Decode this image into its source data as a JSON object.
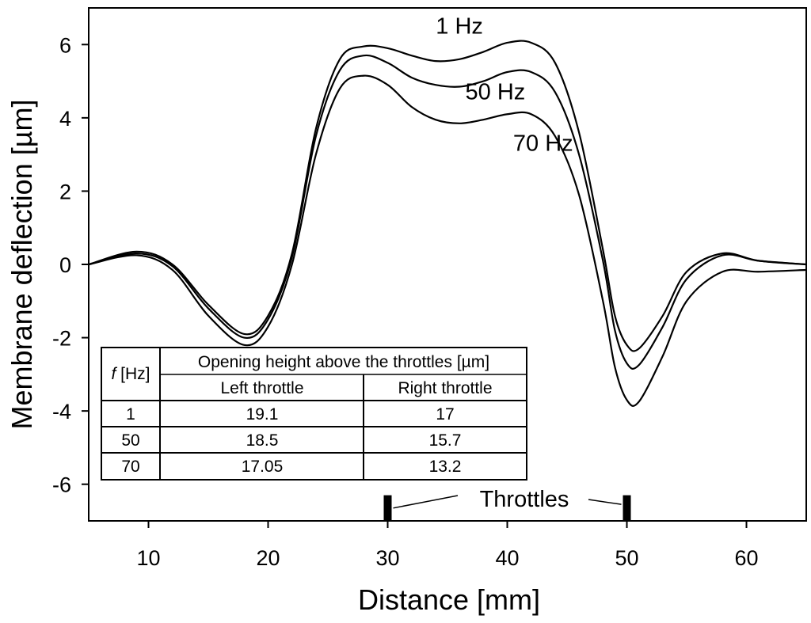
{
  "chart_data": {
    "type": "line",
    "xlabel": "Distance [mm]",
    "ylabel": "Membrane deflection [µm]",
    "xlim": [
      5,
      65
    ],
    "ylim": [
      -7,
      7
    ],
    "x_ticks": [
      10,
      20,
      30,
      40,
      50,
      60
    ],
    "y_ticks": [
      6,
      4,
      2,
      0,
      -2,
      -4,
      -6
    ],
    "series": [
      {
        "name": "1 Hz",
        "x": [
          5,
          9,
          12,
          15,
          18,
          20,
          22,
          24,
          26,
          28,
          30,
          32,
          34,
          36,
          38,
          40,
          42,
          44,
          46,
          48,
          49,
          50,
          51,
          53,
          55,
          58,
          61,
          65
        ],
        "y": [
          0,
          0.35,
          0,
          -1.1,
          -1.9,
          -1.4,
          0.3,
          3.7,
          5.6,
          5.95,
          5.9,
          5.7,
          5.55,
          5.6,
          5.8,
          6.05,
          6.05,
          5.5,
          3.6,
          0.4,
          -1.4,
          -2.2,
          -2.3,
          -1.4,
          -0.2,
          0.3,
          0.1,
          0
        ]
      },
      {
        "name": "50 Hz",
        "x": [
          5,
          9,
          12,
          15,
          18,
          20,
          22,
          24,
          26,
          28,
          30,
          32,
          34,
          36,
          38,
          40,
          42,
          44,
          46,
          48,
          49,
          50,
          51,
          53,
          55,
          58,
          61,
          65
        ],
        "y": [
          0,
          0.3,
          -0.05,
          -1.2,
          -2.0,
          -1.5,
          0.2,
          3.5,
          5.3,
          5.7,
          5.5,
          5.1,
          4.9,
          4.85,
          5.0,
          5.25,
          5.25,
          4.7,
          3.0,
          0.1,
          -1.8,
          -2.7,
          -2.75,
          -1.7,
          -0.4,
          0.25,
          0.1,
          0
        ]
      },
      {
        "name": "70 Hz",
        "x": [
          5,
          9,
          12,
          15,
          18,
          20,
          22,
          24,
          26,
          28,
          30,
          32,
          34,
          36,
          38,
          40,
          42,
          44,
          46,
          48,
          49,
          50,
          51,
          53,
          55,
          58,
          61,
          65
        ],
        "y": [
          0,
          0.25,
          -0.15,
          -1.4,
          -2.2,
          -1.7,
          0.0,
          3.0,
          4.8,
          5.15,
          4.9,
          4.3,
          3.95,
          3.85,
          3.95,
          4.1,
          4.1,
          3.5,
          1.9,
          -1.0,
          -2.8,
          -3.7,
          -3.75,
          -2.5,
          -1.0,
          -0.2,
          -0.2,
          -0.15
        ]
      }
    ],
    "series_labels": [
      {
        "text": "1 Hz",
        "x": 36,
        "y": 6.3
      },
      {
        "text": "50 Hz",
        "x": 39,
        "y": 4.5
      },
      {
        "text": "70 Hz",
        "x": 43,
        "y": 3.1
      }
    ],
    "throttles": {
      "label": "Throttles",
      "positions": [
        30,
        50
      ]
    },
    "table": {
      "col_f_header_italic": "f",
      "col_f_header_unit": " [Hz]",
      "group_header": "Opening height above the throttles [µm]",
      "sub_headers": [
        "Left throttle",
        "Right throttle"
      ],
      "rows": [
        [
          "1",
          "19.1",
          "17"
        ],
        [
          "50",
          "18.5",
          "15.7"
        ],
        [
          "70",
          "17.05",
          "13.2"
        ]
      ]
    }
  }
}
